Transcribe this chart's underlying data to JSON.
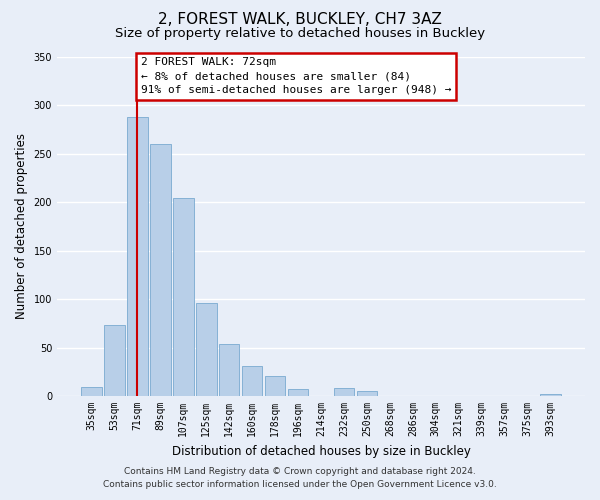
{
  "title": "2, FOREST WALK, BUCKLEY, CH7 3AZ",
  "subtitle": "Size of property relative to detached houses in Buckley",
  "xlabel": "Distribution of detached houses by size in Buckley",
  "ylabel": "Number of detached properties",
  "bar_labels": [
    "35sqm",
    "53sqm",
    "71sqm",
    "89sqm",
    "107sqm",
    "125sqm",
    "142sqm",
    "160sqm",
    "178sqm",
    "196sqm",
    "214sqm",
    "232sqm",
    "250sqm",
    "268sqm",
    "286sqm",
    "304sqm",
    "321sqm",
    "339sqm",
    "357sqm",
    "375sqm",
    "393sqm"
  ],
  "bar_values": [
    9,
    73,
    288,
    260,
    204,
    96,
    54,
    31,
    21,
    7,
    0,
    8,
    5,
    0,
    0,
    0,
    0,
    0,
    0,
    0,
    2
  ],
  "bar_color": "#b8cfe8",
  "bar_edge_color": "#7aaad0",
  "highlight_bar_index": 2,
  "highlight_color": "#cc0000",
  "ylim": [
    0,
    350
  ],
  "yticks": [
    0,
    50,
    100,
    150,
    200,
    250,
    300,
    350
  ],
  "annotation_title": "2 FOREST WALK: 72sqm",
  "annotation_line1": "← 8% of detached houses are smaller (84)",
  "annotation_line2": "91% of semi-detached houses are larger (948) →",
  "footer_line1": "Contains HM Land Registry data © Crown copyright and database right 2024.",
  "footer_line2": "Contains public sector information licensed under the Open Government Licence v3.0.",
  "bg_color": "#e8eef8",
  "plot_bg_color": "#e8eef8",
  "grid_color": "#ffffff",
  "title_fontsize": 11,
  "subtitle_fontsize": 9.5,
  "axis_label_fontsize": 8.5,
  "tick_fontsize": 7,
  "footer_fontsize": 6.5,
  "annotation_fontsize": 8
}
